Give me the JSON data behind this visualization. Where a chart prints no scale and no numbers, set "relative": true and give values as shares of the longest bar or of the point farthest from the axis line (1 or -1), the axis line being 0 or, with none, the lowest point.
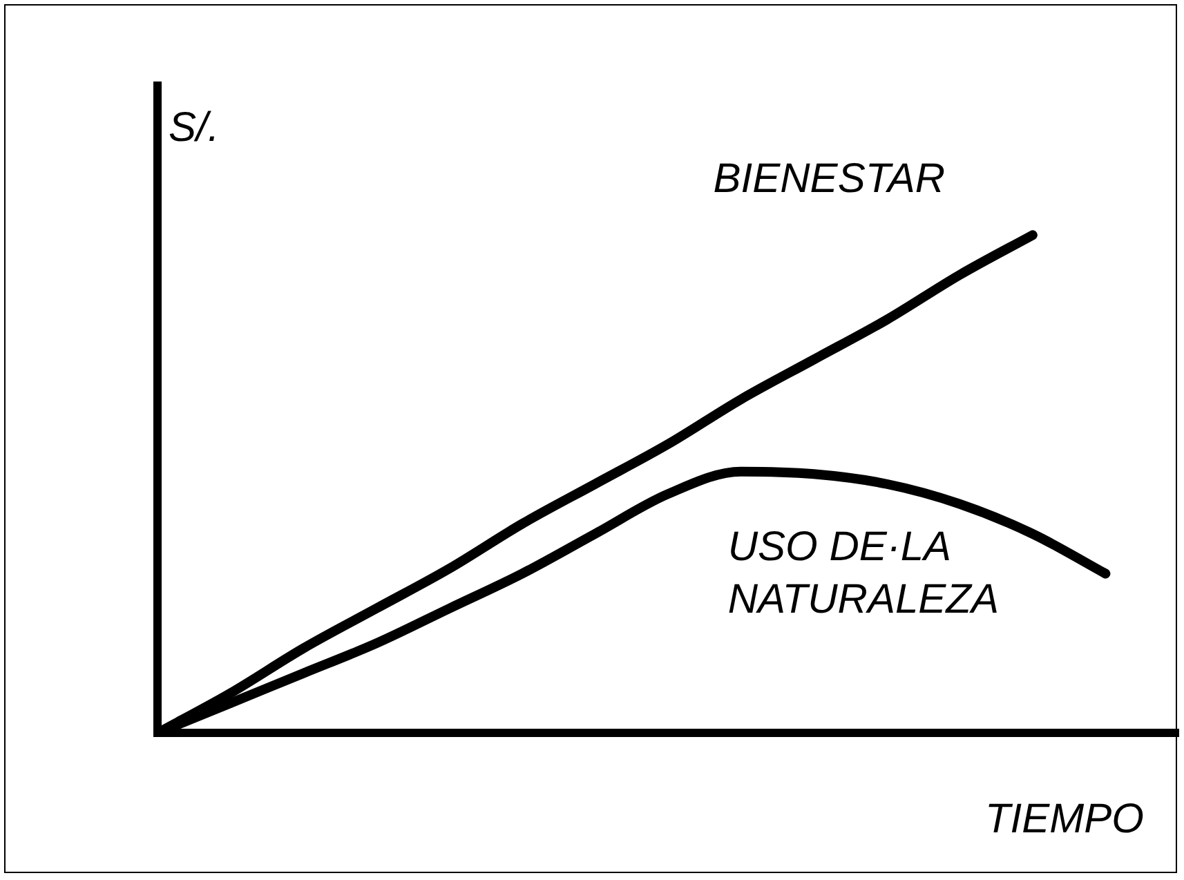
{
  "chart_data": {
    "type": "line",
    "relative": true,
    "xlabel": "TIEMPO",
    "ylabel": "S/.",
    "categories": [
      null,
      null,
      null,
      null,
      null,
      null,
      null,
      null,
      null,
      null,
      null,
      null,
      null,
      null
    ],
    "series": [
      {
        "name": "BIENESTAR",
        "color": "#000000",
        "values": [
          0,
          0.08,
          0.17,
          0.25,
          0.33,
          0.42,
          0.5,
          0.58,
          0.67,
          0.75,
          0.83,
          0.92,
          1,
          null
        ]
      },
      {
        "name": "USO DE·LA NATURALEZA",
        "color": "#000000",
        "values": [
          0,
          0.06,
          0.12,
          0.18,
          0.25,
          0.32,
          0.4,
          0.48,
          0.525,
          0.52,
          0.5,
          0.46,
          0.4,
          0.32
        ]
      }
    ],
    "grid": false,
    "legend": false,
    "marker": "none",
    "line_style": "solid"
  }
}
